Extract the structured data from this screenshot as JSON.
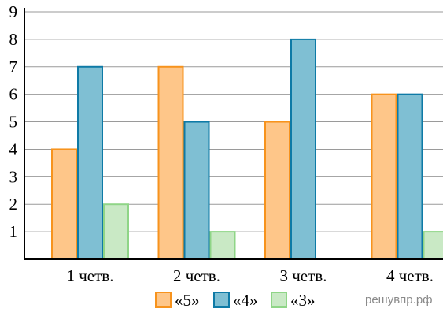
{
  "chart_data": {
    "type": "bar",
    "categories": [
      "1 четв.",
      "2 четв.",
      "3 четв.",
      "4 четв."
    ],
    "series": [
      {
        "name": "«5»",
        "values": [
          4,
          7,
          5,
          6
        ],
        "fill": "#fec689",
        "stroke": "#f7931d"
      },
      {
        "name": "«4»",
        "values": [
          7,
          5,
          8,
          6
        ],
        "fill": "#7fbfd3",
        "stroke": "#0e7aa6"
      },
      {
        "name": "«3»",
        "values": [
          2,
          1,
          0,
          1
        ],
        "fill": "#c9e9c5",
        "stroke": "#8fd587"
      }
    ],
    "ylim": [
      0,
      9
    ],
    "yticks": [
      "1",
      "2",
      "3",
      "4",
      "5",
      "6",
      "7",
      "8",
      "9"
    ],
    "grid": true,
    "legend_position": "bottom-center"
  },
  "watermark": "решувпр.рф",
  "colors": {
    "grid": "#9a9a9a",
    "axis": "#000000"
  }
}
